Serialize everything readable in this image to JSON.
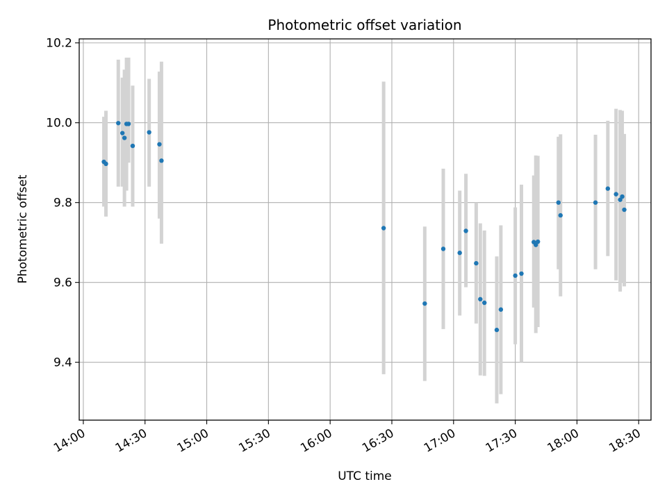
{
  "chart_data": {
    "type": "scatter",
    "title": "Photometric offset variation",
    "xlabel": "UTC time",
    "ylabel": "Photometric offset",
    "x_unit": "UTC time (HH:MM)",
    "xlim": [
      "13:58",
      "18:36"
    ],
    "ylim": [
      9.255,
      10.21
    ],
    "x_ticks": [
      "14:00",
      "14:30",
      "15:00",
      "15:30",
      "16:00",
      "16:30",
      "17:00",
      "17:30",
      "18:00",
      "18:30"
    ],
    "y_ticks": [
      9.4,
      9.6,
      9.8,
      10.0,
      10.2
    ],
    "y_tick_labels": [
      "9.4",
      "9.6",
      "9.8",
      "10.0",
      "10.2"
    ],
    "grid": true,
    "colors": {
      "point": "#1f77b4",
      "errorbar": "#d3d3d3",
      "grid": "#b0b0b0"
    },
    "points": [
      {
        "x": "14:10",
        "y": 9.902,
        "ylo": 9.79,
        "yhi": 10.015
      },
      {
        "x": "14:11",
        "y": 9.897,
        "ylo": 9.765,
        "yhi": 10.03
      },
      {
        "x": "14:17",
        "y": 9.999,
        "ylo": 9.84,
        "yhi": 10.158
      },
      {
        "x": "14:19",
        "y": 9.974,
        "ylo": 9.84,
        "yhi": 10.113
      },
      {
        "x": "14:20",
        "y": 9.962,
        "ylo": 9.79,
        "yhi": 10.133
      },
      {
        "x": "14:21",
        "y": 9.997,
        "ylo": 9.83,
        "yhi": 10.163
      },
      {
        "x": "14:22",
        "y": 9.997,
        "ylo": 9.9,
        "yhi": 10.163
      },
      {
        "x": "14:24",
        "y": 9.942,
        "ylo": 9.79,
        "yhi": 10.093
      },
      {
        "x": "14:32",
        "y": 9.976,
        "ylo": 9.84,
        "yhi": 10.11
      },
      {
        "x": "14:37",
        "y": 9.946,
        "ylo": 9.76,
        "yhi": 10.128
      },
      {
        "x": "14:38",
        "y": 9.905,
        "ylo": 9.697,
        "yhi": 10.153
      },
      {
        "x": "16:26",
        "y": 9.736,
        "ylo": 9.37,
        "yhi": 10.103
      },
      {
        "x": "16:46",
        "y": 9.547,
        "ylo": 9.353,
        "yhi": 9.74
      },
      {
        "x": "16:55",
        "y": 9.684,
        "ylo": 9.483,
        "yhi": 9.885
      },
      {
        "x": "17:03",
        "y": 9.674,
        "ylo": 9.517,
        "yhi": 9.83
      },
      {
        "x": "17:06",
        "y": 9.729,
        "ylo": 9.588,
        "yhi": 9.872
      },
      {
        "x": "17:11",
        "y": 9.648,
        "ylo": 9.497,
        "yhi": 9.8
      },
      {
        "x": "17:13",
        "y": 9.558,
        "ylo": 9.367,
        "yhi": 9.748
      },
      {
        "x": "17:15",
        "y": 9.549,
        "ylo": 9.366,
        "yhi": 9.73
      },
      {
        "x": "17:21",
        "y": 9.481,
        "ylo": 9.297,
        "yhi": 9.665
      },
      {
        "x": "17:23",
        "y": 9.532,
        "ylo": 9.32,
        "yhi": 9.743
      },
      {
        "x": "17:30",
        "y": 9.617,
        "ylo": 9.445,
        "yhi": 9.788
      },
      {
        "x": "17:33",
        "y": 9.622,
        "ylo": 9.4,
        "yhi": 9.845
      },
      {
        "x": "17:39",
        "y": 9.701,
        "ylo": 9.537,
        "yhi": 9.868
      },
      {
        "x": "17:40",
        "y": 9.694,
        "ylo": 9.473,
        "yhi": 9.918
      },
      {
        "x": "17:41",
        "y": 9.702,
        "ylo": 9.488,
        "yhi": 9.917
      },
      {
        "x": "17:51",
        "y": 9.8,
        "ylo": 9.633,
        "yhi": 9.965
      },
      {
        "x": "17:52",
        "y": 9.768,
        "ylo": 9.565,
        "yhi": 9.971
      },
      {
        "x": "18:09",
        "y": 9.8,
        "ylo": 9.633,
        "yhi": 9.97
      },
      {
        "x": "18:15",
        "y": 9.835,
        "ylo": 9.666,
        "yhi": 10.005
      },
      {
        "x": "18:19",
        "y": 9.821,
        "ylo": 9.605,
        "yhi": 10.035
      },
      {
        "x": "18:21",
        "y": 9.807,
        "ylo": 9.577,
        "yhi": 10.032
      },
      {
        "x": "18:22",
        "y": 9.815,
        "ylo": 9.6,
        "yhi": 10.03
      },
      {
        "x": "18:23",
        "y": 9.782,
        "ylo": 9.59,
        "yhi": 9.972
      }
    ]
  }
}
